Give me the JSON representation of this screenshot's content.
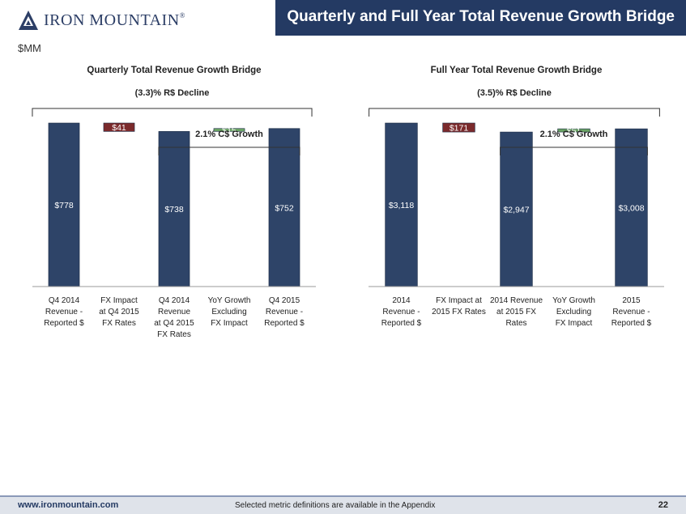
{
  "header": {
    "title": "Quarterly and Full Year Total Revenue Growth Bridge"
  },
  "logo": {
    "text": "IRON MOUNTAIN",
    "reg": "®"
  },
  "units": "$MM",
  "footer": {
    "url": "www.ironmountain.com",
    "note": "Selected metric definitions are available in the Appendix",
    "page": "22"
  },
  "colors": {
    "navy": "#2e4468",
    "red": "#7b2a2c",
    "green": "#6aa364",
    "header": "#243a63"
  },
  "chart_data": [
    {
      "type": "bar",
      "title": "Quarterly Total Revenue Growth Bridge",
      "categories": [
        "Q4 2014 Revenue - Reported $",
        "FX Impact at Q4 2015 FX Rates",
        "Q4 2014 Revenue at Q4 2015 FX Rates",
        "YoY Growth Excluding FX Impact",
        "Q4 2015 Revenue - Reported $"
      ],
      "category_lines": [
        [
          "Q4 2014",
          "Revenue  -",
          "Reported $"
        ],
        [
          "FX Impact",
          "at Q4 2015",
          "FX Rates"
        ],
        [
          "Q4 2014",
          "Revenue",
          "at Q4 2015",
          "FX Rates"
        ],
        [
          "YoY Growth",
          "Excluding",
          "FX Impact"
        ],
        [
          "Q4 2015",
          "Revenue -",
          "Reported $"
        ]
      ],
      "bars": [
        {
          "kind": "total",
          "low": 0,
          "high": 778,
          "label": "$778",
          "color": "navy"
        },
        {
          "kind": "decrease",
          "low": 738,
          "high": 778,
          "label": "$41",
          "color": "red"
        },
        {
          "kind": "total",
          "low": 0,
          "high": 738,
          "label": "$738",
          "color": "navy"
        },
        {
          "kind": "increase",
          "low": 738,
          "high": 752,
          "label": "$15",
          "color": "green"
        },
        {
          "kind": "total",
          "low": 0,
          "high": 752,
          "label": "$752",
          "color": "navy"
        }
      ],
      "ylim": [
        0,
        778
      ],
      "annotations": [
        {
          "text": "(3.3)% R$ Decline",
          "from": 0,
          "to": 4
        },
        {
          "text": "2.1% C$ Growth",
          "from": 2,
          "to": 4
        }
      ]
    },
    {
      "type": "bar",
      "title": "Full Year Total Revenue Growth Bridge",
      "categories": [
        "2014 Revenue - Reported $",
        "FX Impact at 2015 FX Rates",
        "2014 Revenue at 2015 FX Rates",
        "YoY Growth Excluding FX Impact",
        "2015 Revenue - Reported $"
      ],
      "category_lines": [
        [
          "2014",
          "Revenue  -",
          "Reported $"
        ],
        [
          "FX Impact at",
          "2015 FX Rates"
        ],
        [
          "2014 Revenue",
          "at 2015 FX",
          "Rates"
        ],
        [
          "YoY Growth",
          "Excluding",
          "FX Impact"
        ],
        [
          "2015",
          "Revenue -",
          "Reported $"
        ]
      ],
      "bars": [
        {
          "kind": "total",
          "low": 0,
          "high": 3118,
          "label": "$3,118",
          "color": "navy"
        },
        {
          "kind": "decrease",
          "low": 2947,
          "high": 3118,
          "label": "$171",
          "color": "red"
        },
        {
          "kind": "total",
          "low": 0,
          "high": 2947,
          "label": "$2,947",
          "color": "navy"
        },
        {
          "kind": "increase",
          "low": 2947,
          "high": 3008,
          "label": "$61",
          "color": "green"
        },
        {
          "kind": "total",
          "low": 0,
          "high": 3008,
          "label": "$3,008",
          "color": "navy"
        }
      ],
      "ylim": [
        0,
        3118
      ],
      "annotations": [
        {
          "text": "(3.5)% R$ Decline",
          "from": 0,
          "to": 4
        },
        {
          "text": "2.1% C$ Growth",
          "from": 2,
          "to": 4
        }
      ]
    }
  ]
}
